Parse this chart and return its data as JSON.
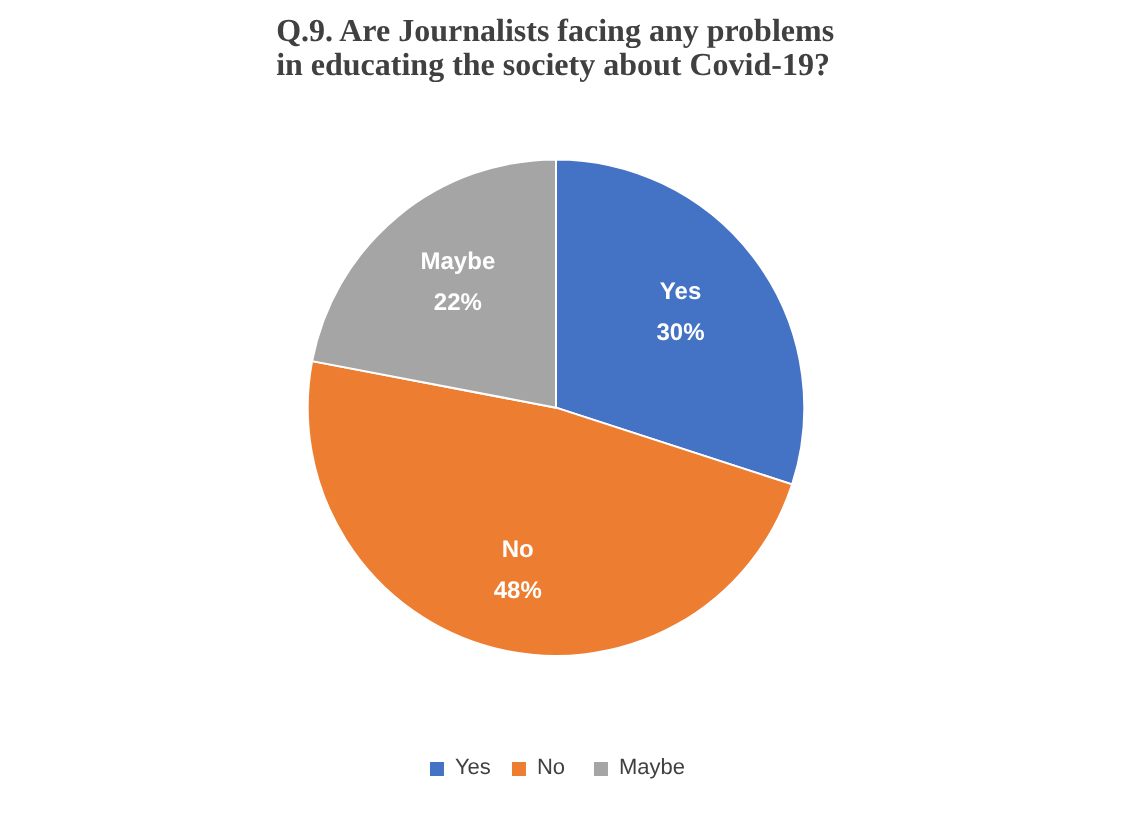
{
  "chart_data": {
    "type": "pie",
    "title": "Q.9. Are Journalists facing any problems in educating the society about Covid-19?",
    "categories": [
      "Yes",
      "No",
      "Maybe"
    ],
    "values": [
      30,
      48,
      22
    ],
    "value_labels": [
      "30%",
      "48%",
      "22%"
    ],
    "colors": [
      "#4472c4",
      "#ed7d31",
      "#a5a5a5"
    ],
    "legend": "bottom"
  }
}
